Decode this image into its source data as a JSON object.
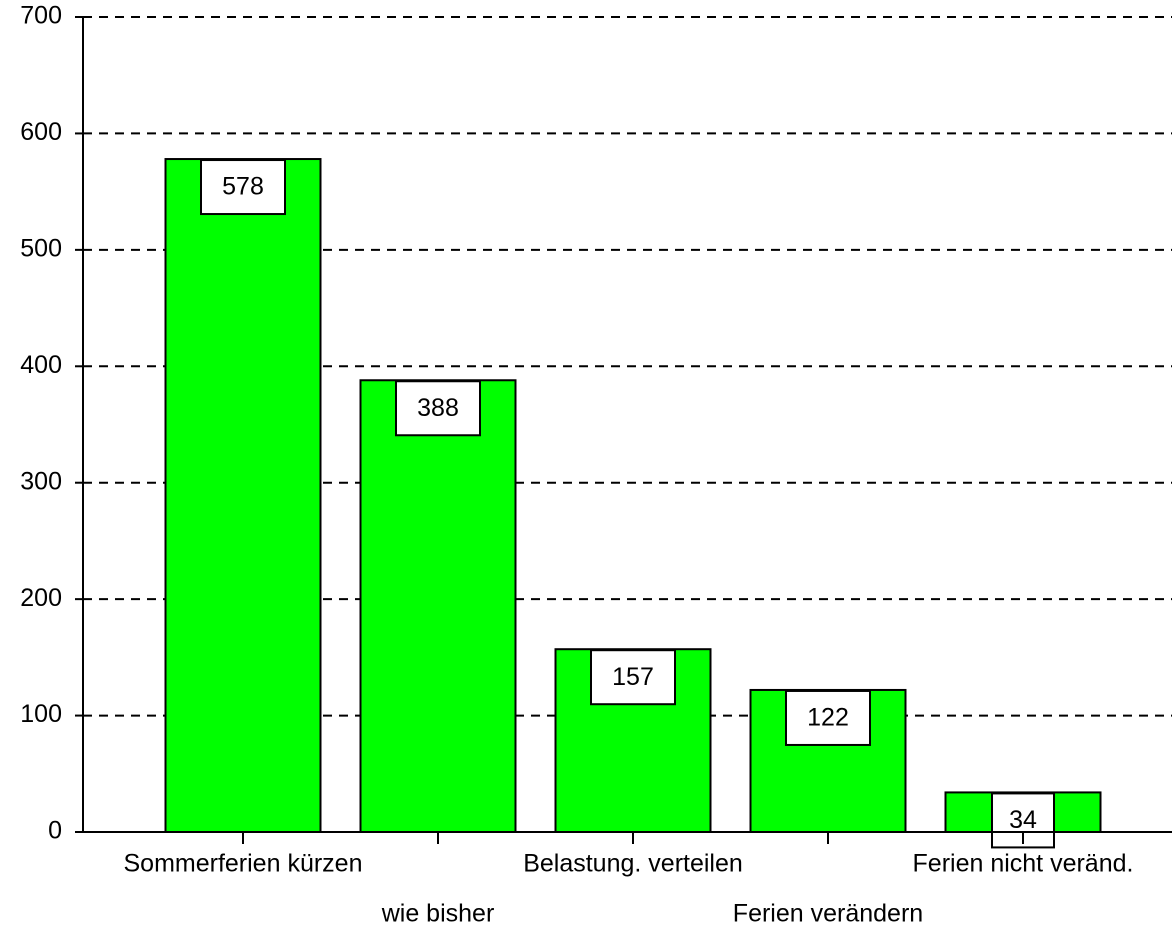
{
  "chart_data": {
    "type": "bar",
    "categories": [
      "Sommerferien kürzen",
      "wie bisher",
      "Belastung. verteilen",
      "Ferien verändern",
      "Ferien nicht veränd."
    ],
    "values": [
      578,
      388,
      157,
      122,
      34
    ],
    "color": "#00ff00",
    "ylim": [
      0,
      700
    ],
    "yticks": [
      0,
      100,
      200,
      300,
      400,
      500,
      600,
      700
    ],
    "grid": true
  }
}
